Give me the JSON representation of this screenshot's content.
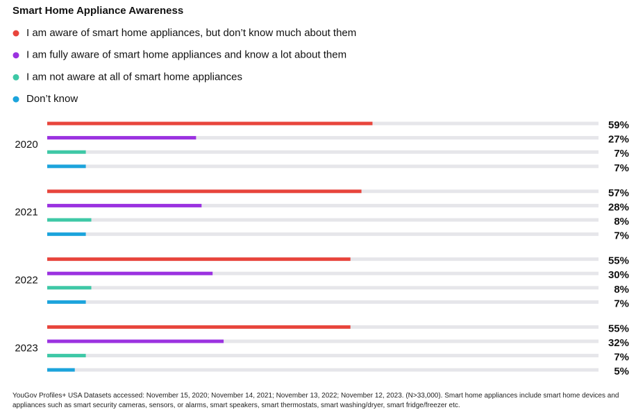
{
  "chart_data": {
    "type": "bar",
    "orientation": "horizontal",
    "title": "Smart Home Appliance Awareness",
    "categories": [
      "2020",
      "2021",
      "2022",
      "2023"
    ],
    "series": [
      {
        "name": "I am aware of smart home appliances, but don’t know much about them",
        "color": "#e8453c",
        "values": [
          59,
          57,
          55,
          55
        ],
        "value_labels": [
          "59%",
          "57%",
          "55%",
          "55%"
        ]
      },
      {
        "name": "I am fully aware of smart home appliances and know a lot about them",
        "color": "#9b32e0",
        "values": [
          27,
          28,
          30,
          32
        ],
        "value_labels": [
          "27%",
          "28%",
          "30%",
          "32%"
        ]
      },
      {
        "name": "I am not aware at all of smart home appliances",
        "color": "#3ec8a6",
        "values": [
          7,
          8,
          8,
          7
        ],
        "value_labels": [
          "7%",
          "8%",
          "8%",
          "7%"
        ]
      },
      {
        "name": "Don’t know",
        "color": "#1ca4dc",
        "values": [
          7,
          7,
          7,
          5
        ],
        "value_labels": [
          "7%",
          "7%",
          "7%",
          "5%"
        ]
      }
    ],
    "xlim": [
      0,
      100
    ],
    "footnote": "YouGov Profiles+ USA Datasets accessed: November 15, 2020; November 14, 2021; November 13, 2022; November 12, 2023. (N>33,000). Smart home appliances include smart home devices and appliances such as smart security cameras, sensors, or alarms, smart speakers, smart thermostats, smart washing/dryer, smart fridge/freezer etc."
  }
}
